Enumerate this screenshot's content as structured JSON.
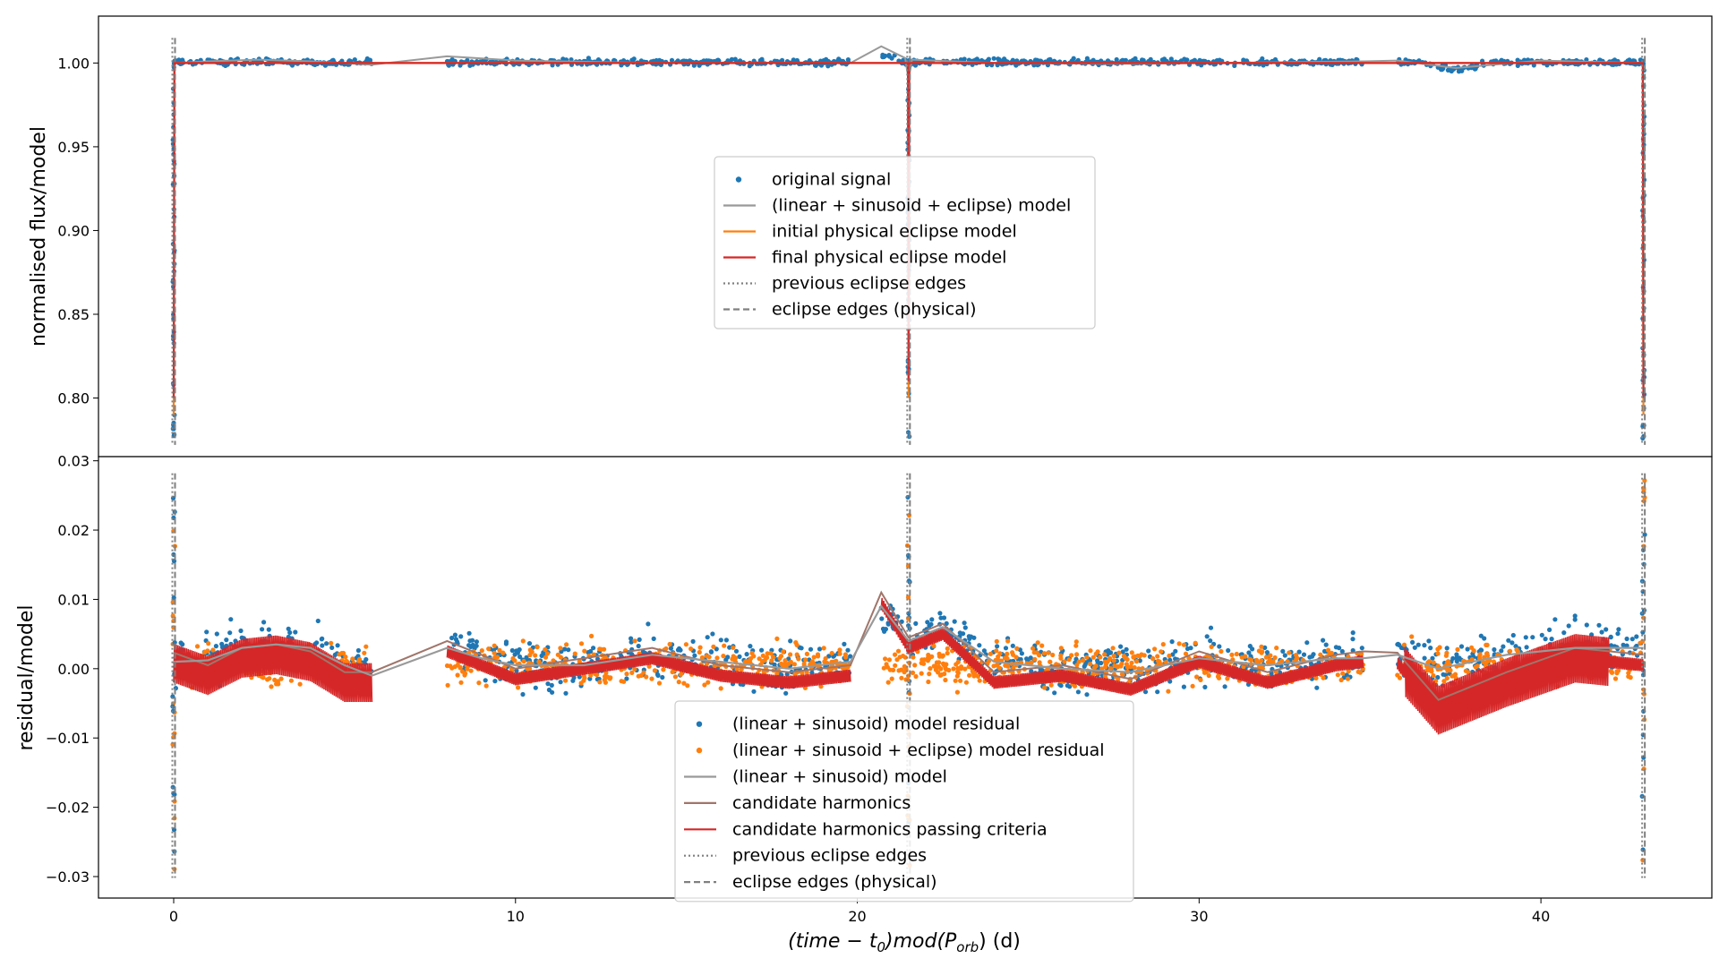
{
  "chart_data": [
    {
      "type": "scatter",
      "panel": "top",
      "ylabel": "normalised flux/model",
      "xlim": [
        -2.2,
        45.0
      ],
      "ylim": [
        0.765,
        1.028
      ],
      "yticks": [
        "0.80",
        "0.85",
        "0.90",
        "0.95",
        "1.00"
      ],
      "ytick_values": [
        0.8,
        0.85,
        0.9,
        0.95,
        1.0
      ],
      "eclipse_edges_x": [
        0.0,
        21.5,
        43.0
      ],
      "segments": [
        [
          0.0,
          5.8
        ],
        [
          8.0,
          19.8
        ],
        [
          20.7,
          34.8
        ],
        [
          35.8,
          43.0
        ]
      ],
      "legend": {
        "placement": "center",
        "entries": [
          {
            "label": "original signal",
            "style": "dot",
            "color": "#1f77b4"
          },
          {
            "label": "(linear + sinusoid + eclipse) model",
            "style": "line",
            "color": "#999999"
          },
          {
            "label": "initial physical eclipse model",
            "style": "line",
            "color": "#ff7f0e"
          },
          {
            "label": "final physical eclipse model",
            "style": "line",
            "color": "#d62728"
          },
          {
            "label": "previous eclipse edges",
            "style": "dotted",
            "color": "#808080"
          },
          {
            "label": "eclipse edges (physical)",
            "style": "dashed",
            "color": "#808080"
          }
        ]
      }
    },
    {
      "type": "scatter",
      "panel": "bottom",
      "ylabel": "residual/model",
      "xlabel_main": "(time − t",
      "xlabel_sub0": "0",
      "xlabel_mid": ")mod(P",
      "xlabel_sub1": "orb",
      "xlabel_end": ") (d)",
      "xlim": [
        -2.2,
        45.0
      ],
      "ylim": [
        -0.0331,
        0.0306
      ],
      "xticks": [
        "0",
        "10",
        "20",
        "30",
        "40"
      ],
      "xtick_values": [
        0,
        10,
        20,
        30,
        40
      ],
      "yticks": [
        "−0.03",
        "−0.02",
        "−0.01",
        "0.00",
        "0.01",
        "0.02",
        "0.03"
      ],
      "ytick_values": [
        -0.03,
        -0.02,
        -0.01,
        0.0,
        0.01,
        0.02,
        0.03
      ],
      "eclipse_edges_x": [
        0.0,
        21.5,
        43.0
      ],
      "model_trend": [
        [
          0,
          0.001
        ],
        [
          1,
          0.0012
        ],
        [
          2,
          0.003
        ],
        [
          3,
          0.0035
        ],
        [
          4,
          0.003
        ],
        [
          5,
          0.0005
        ],
        [
          5.8,
          -0.001
        ],
        [
          8,
          0.003
        ],
        [
          9,
          0.0015
        ],
        [
          10,
          0.0005
        ],
        [
          12,
          0.0005
        ],
        [
          14,
          0.002
        ],
        [
          16,
          0.001
        ],
        [
          18,
          0.0
        ],
        [
          19.8,
          0.001
        ],
        [
          20.7,
          0.009
        ],
        [
          21.5,
          0.004
        ],
        [
          22.5,
          0.006
        ],
        [
          24,
          0.001
        ],
        [
          26,
          0.0
        ],
        [
          28,
          -0.0005
        ],
        [
          30,
          0.0015
        ],
        [
          32,
          0.0005
        ],
        [
          34,
          0.0015
        ],
        [
          34.8,
          0.0015
        ],
        [
          35.8,
          0.002
        ],
        [
          37,
          0.0
        ],
        [
          39,
          0.002
        ],
        [
          41,
          0.003
        ],
        [
          43,
          0.003
        ]
      ],
      "harmonics_trend": [
        [
          0,
          0.0008
        ],
        [
          1,
          -0.001
        ],
        [
          2,
          0.0015
        ],
        [
          3,
          0.002
        ],
        [
          4,
          0.001
        ],
        [
          5,
          -0.002
        ],
        [
          5.8,
          -0.002
        ],
        [
          8,
          0.0025
        ],
        [
          9,
          0.0005
        ],
        [
          10,
          -0.0015
        ],
        [
          12,
          0.0
        ],
        [
          14,
          0.0015
        ],
        [
          16,
          -0.001
        ],
        [
          18,
          -0.002
        ],
        [
          19.8,
          -0.001
        ],
        [
          20.7,
          0.0095
        ],
        [
          21.5,
          0.003
        ],
        [
          22.5,
          0.005
        ],
        [
          24,
          -0.002
        ],
        [
          26,
          -0.001
        ],
        [
          28,
          -0.003
        ],
        [
          30,
          0.001
        ],
        [
          32,
          -0.002
        ],
        [
          34,
          0.0005
        ],
        [
          34.8,
          0.001
        ],
        [
          35.8,
          0.0008
        ],
        [
          37,
          -0.006
        ],
        [
          39,
          -0.002
        ],
        [
          41,
          0.0015
        ],
        [
          43,
          0.0005
        ]
      ],
      "legend": {
        "placement": "lower center",
        "entries": [
          {
            "label": "(linear + sinusoid) model residual",
            "style": "dot",
            "color": "#1f77b4"
          },
          {
            "label": "(linear + sinusoid + eclipse) model residual",
            "style": "dot",
            "color": "#ff7f0e"
          },
          {
            "label": "(linear + sinusoid) model",
            "style": "line",
            "color": "#999999"
          },
          {
            "label": "candidate harmonics",
            "style": "line",
            "color": "#a0756a"
          },
          {
            "label": "candidate harmonics passing criteria",
            "style": "line",
            "color": "#d62728"
          },
          {
            "label": "previous eclipse edges",
            "style": "dotted",
            "color": "#808080"
          },
          {
            "label": "eclipse edges (physical)",
            "style": "dashed",
            "color": "#808080"
          }
        ]
      }
    }
  ]
}
